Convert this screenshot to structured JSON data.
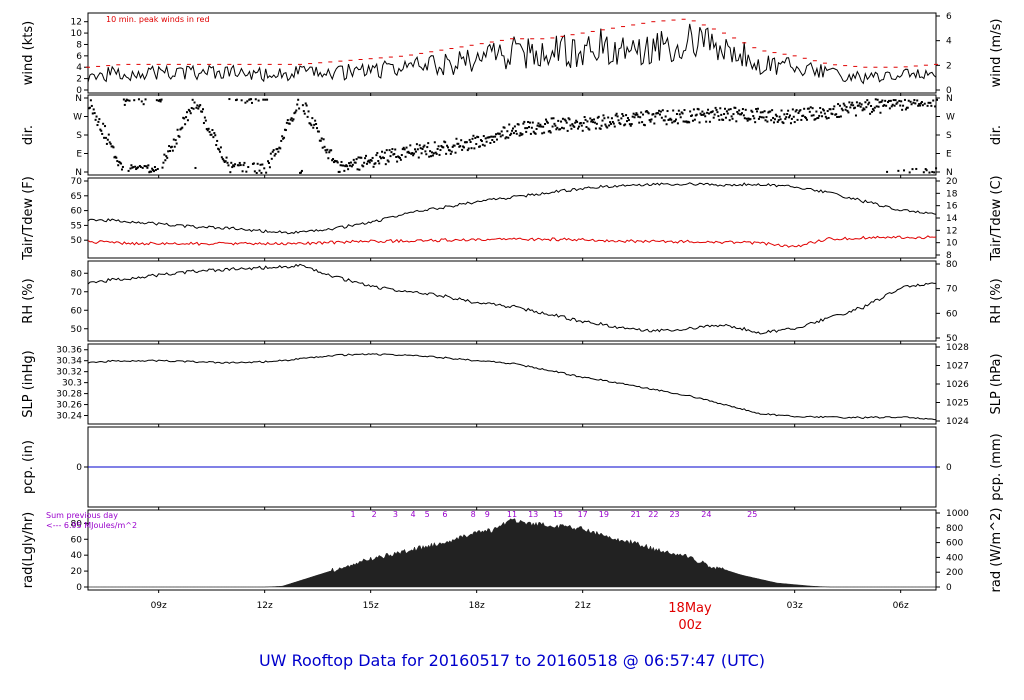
{
  "title": "UW Rooftop Data for 20160517  to  20160518 @ 06:57:47  (UTC)",
  "date_label": "18May",
  "date_label_sub": "00z",
  "wind_note": "10 min. peak winds in red",
  "rad_note_1": "Sum previous day",
  "rad_note_2": "<--- 6.95 MJoules/m^2",
  "colors": {
    "text": "#000000",
    "peak": "#e00000",
    "dew": "#e00000",
    "precip": "#0000cc",
    "title": "#0000cc",
    "note": "#9900cc"
  },
  "chart_data": [
    {
      "type": "line",
      "id": "wind",
      "ylabel": "wind (kts)",
      "ylabel_right": "wind (m/s)",
      "yticks": [
        0,
        2,
        4,
        6,
        8,
        10,
        12
      ],
      "yticks_right": [
        0,
        2,
        4,
        6
      ],
      "ylim": [
        0,
        13
      ],
      "series": [
        {
          "name": "wind",
          "color": "#000000",
          "points": [
            [
              7.0,
              2.5
            ],
            [
              8.0,
              3
            ],
            [
              9.0,
              3
            ],
            [
              10.0,
              3
            ],
            [
              11.0,
              3
            ],
            [
              12.0,
              2.7
            ],
            [
              13.0,
              3
            ],
            [
              14.0,
              3
            ],
            [
              15.0,
              3.5
            ],
            [
              16.0,
              4
            ],
            [
              17.0,
              4.5
            ],
            [
              18.0,
              5.5
            ],
            [
              19.0,
              6.5
            ],
            [
              20.0,
              6.5
            ],
            [
              21.0,
              7.0
            ],
            [
              22.0,
              8.0
            ],
            [
              23.0,
              8.0
            ],
            [
              24.0,
              8.5
            ],
            [
              25.0,
              7.0
            ],
            [
              26.0,
              5.0
            ],
            [
              27.0,
              4.0
            ],
            [
              28.0,
              3.0
            ],
            [
              29.0,
              2.0
            ],
            [
              30.0,
              2.5
            ],
            [
              31.0,
              3.0
            ]
          ]
        },
        {
          "name": "10 min. peak winds",
          "color": "#e00000",
          "points": [
            [
              7.0,
              4
            ],
            [
              8.0,
              4.5
            ],
            [
              9.0,
              4.5
            ],
            [
              10.0,
              4.5
            ],
            [
              11.0,
              4.5
            ],
            [
              12.0,
              4.5
            ],
            [
              13.0,
              4.5
            ],
            [
              14.0,
              5
            ],
            [
              15.0,
              5.5
            ],
            [
              16.0,
              6
            ],
            [
              17.0,
              7
            ],
            [
              18.0,
              8
            ],
            [
              19.0,
              9
            ],
            [
              20.0,
              9
            ],
            [
              21.0,
              10
            ],
            [
              22.0,
              11
            ],
            [
              23.0,
              12
            ],
            [
              24.0,
              12.5
            ],
            [
              25.0,
              10
            ],
            [
              26.0,
              7
            ],
            [
              27.0,
              6
            ],
            [
              28.0,
              4.5
            ],
            [
              29.0,
              4
            ],
            [
              30.0,
              4
            ],
            [
              31.0,
              4.5
            ]
          ]
        }
      ]
    },
    {
      "type": "scatter",
      "id": "dir",
      "ylabel": "dir.",
      "ylabel_right": "dir.",
      "yticks": [
        "N",
        "E",
        "S",
        "W",
        "N"
      ],
      "yticks_right": [
        "N",
        "E",
        "S",
        "W",
        "N"
      ],
      "ylim": [
        0,
        360
      ],
      "points": [
        [
          7.0,
          350
        ],
        [
          8.0,
          5
        ],
        [
          9.0,
          10
        ],
        [
          10.0,
          355
        ],
        [
          11.0,
          20
        ],
        [
          12.0,
          10
        ],
        [
          13.0,
          350
        ],
        [
          14.0,
          30
        ],
        [
          15.0,
          60
        ],
        [
          16.0,
          100
        ],
        [
          17.0,
          120
        ],
        [
          18.0,
          150
        ],
        [
          19.0,
          210
        ],
        [
          20.0,
          230
        ],
        [
          21.0,
          240
        ],
        [
          22.0,
          260
        ],
        [
          23.0,
          270
        ],
        [
          24.0,
          275
        ],
        [
          25.0,
          285
        ],
        [
          26.0,
          280
        ],
        [
          27.0,
          275
        ],
        [
          28.0,
          300
        ],
        [
          29.0,
          320
        ],
        [
          30.0,
          340
        ],
        [
          31.0,
          355
        ]
      ]
    },
    {
      "type": "line",
      "id": "temp",
      "ylabel": "Tair/Tdew (F)",
      "ylabel_right": "Tair/Tdew (C)",
      "yticks": [
        50,
        55,
        60,
        65,
        70
      ],
      "yticks_right": [
        8,
        10,
        12,
        14,
        16,
        18,
        20
      ],
      "ylim": [
        45,
        70
      ],
      "series": [
        {
          "name": "Tair",
          "color": "#000000",
          "points": [
            [
              7.0,
              57
            ],
            [
              8.0,
              56.5
            ],
            [
              9.0,
              55.5
            ],
            [
              10.0,
              54.5
            ],
            [
              11.0,
              54
            ],
            [
              12.0,
              53
            ],
            [
              13.0,
              52.5
            ],
            [
              14.0,
              54
            ],
            [
              15.0,
              56
            ],
            [
              16.0,
              59
            ],
            [
              17.0,
              61
            ],
            [
              18.0,
              63
            ],
            [
              19.0,
              64.5
            ],
            [
              20.0,
              66
            ],
            [
              21.0,
              67.5
            ],
            [
              22.0,
              68.5
            ],
            [
              23.0,
              69
            ],
            [
              24.0,
              69
            ],
            [
              25.0,
              68.5
            ],
            [
              26.0,
              69
            ],
            [
              27.0,
              68
            ],
            [
              28.0,
              66
            ],
            [
              29.0,
              63
            ],
            [
              30.0,
              60
            ],
            [
              31.0,
              59
            ]
          ]
        },
        {
          "name": "Tdew",
          "color": "#e00000",
          "points": [
            [
              7.0,
              49.5
            ],
            [
              8.0,
              49
            ],
            [
              9.0,
              48.8
            ],
            [
              10.0,
              48.8
            ],
            [
              11.0,
              48.8
            ],
            [
              12.0,
              48.8
            ],
            [
              13.0,
              48.8
            ],
            [
              14.0,
              49.3
            ],
            [
              15.0,
              49.7
            ],
            [
              16.0,
              49.7
            ],
            [
              17.0,
              50
            ],
            [
              18.0,
              50
            ],
            [
              19.0,
              50.3
            ],
            [
              20.0,
              50.3
            ],
            [
              21.0,
              50.2
            ],
            [
              22.0,
              49.8
            ],
            [
              23.0,
              49.5
            ],
            [
              24.0,
              49.5
            ],
            [
              25.0,
              49.3
            ],
            [
              26.0,
              49
            ],
            [
              27.0,
              47.8
            ],
            [
              28.0,
              50.5
            ],
            [
              29.0,
              50.8
            ],
            [
              30.0,
              51
            ],
            [
              31.0,
              51
            ]
          ]
        }
      ]
    },
    {
      "type": "line",
      "id": "rh",
      "ylabel": "RH (%)",
      "ylabel_right": "RH (%)",
      "yticks": [
        50,
        60,
        70,
        80
      ],
      "yticks_right": [
        50,
        60,
        70,
        80
      ],
      "ylim": [
        45,
        85
      ],
      "series": [
        {
          "name": "RH",
          "color": "#000000",
          "points": [
            [
              7.0,
              75
            ],
            [
              8.0,
              77
            ],
            [
              9.0,
              79
            ],
            [
              10.0,
              81
            ],
            [
              11.0,
              82
            ],
            [
              12.0,
              83
            ],
            [
              13.0,
              84
            ],
            [
              14.0,
              78
            ],
            [
              15.0,
              73
            ],
            [
              16.0,
              70
            ],
            [
              17.0,
              68
            ],
            [
              18.0,
              64
            ],
            [
              19.0,
              62
            ],
            [
              20.0,
              58
            ],
            [
              21.0,
              54
            ],
            [
              22.0,
              51
            ],
            [
              23.0,
              49
            ],
            [
              24.0,
              50
            ],
            [
              25.0,
              52
            ],
            [
              26.0,
              48
            ],
            [
              27.0,
              50
            ],
            [
              28.0,
              56
            ],
            [
              29.0,
              62
            ],
            [
              30.0,
              72
            ],
            [
              31.0,
              75
            ]
          ]
        }
      ]
    },
    {
      "type": "line",
      "id": "slp",
      "ylabel": "SLP (inHg)",
      "ylabel_right": "SLP (hPa)",
      "yticks": [
        30.24,
        30.26,
        30.28,
        30.3,
        30.32,
        30.34,
        30.36
      ],
      "yticks_right": [
        1024,
        1025,
        1026,
        1027,
        1028
      ],
      "ylim": [
        30.23,
        30.365
      ],
      "series": [
        {
          "name": "SLP",
          "color": "#000000",
          "points": [
            [
              7.0,
              30.337
            ],
            [
              8.0,
              30.34
            ],
            [
              9.0,
              30.34
            ],
            [
              10.0,
              30.338
            ],
            [
              11.0,
              30.336
            ],
            [
              12.0,
              30.338
            ],
            [
              13.0,
              30.343
            ],
            [
              14.0,
              30.35
            ],
            [
              15.0,
              30.352
            ],
            [
              16.0,
              30.35
            ],
            [
              17.0,
              30.346
            ],
            [
              18.0,
              30.34
            ],
            [
              19.0,
              30.335
            ],
            [
              20.0,
              30.323
            ],
            [
              21.0,
              30.31
            ],
            [
              22.0,
              30.3
            ],
            [
              23.0,
              30.288
            ],
            [
              24.0,
              30.276
            ],
            [
              25.0,
              30.26
            ],
            [
              26.0,
              30.244
            ],
            [
              27.0,
              30.238
            ],
            [
              28.0,
              30.237
            ],
            [
              29.0,
              30.236
            ],
            [
              30.0,
              30.237
            ],
            [
              31.0,
              30.233
            ]
          ]
        }
      ]
    },
    {
      "type": "line",
      "id": "pcp",
      "ylabel": "pcp. (in)",
      "ylabel_right": "pcp. (mm)",
      "yticks": [
        0
      ],
      "yticks_right": [
        0
      ],
      "ylim": [
        -1,
        1
      ],
      "series": [
        {
          "name": "pcp",
          "color": "#0000cc",
          "points": [
            [
              7.0,
              0
            ],
            [
              31.0,
              0
            ]
          ]
        }
      ]
    },
    {
      "type": "area",
      "id": "rad",
      "ylabel": "rad(Lgly/hr)",
      "ylabel_right": "rad (W/m^2)",
      "yticks": [
        0,
        20,
        40,
        60,
        80
      ],
      "yticks_right": [
        0,
        200,
        400,
        600,
        800,
        1000
      ],
      "ylim": [
        0,
        93
      ],
      "hour_labels": [
        {
          "label": "1",
          "x": 14.5
        },
        {
          "label": "2",
          "x": 15.1
        },
        {
          "label": "3",
          "x": 15.7
        },
        {
          "label": "4",
          "x": 16.2
        },
        {
          "label": "5",
          "x": 16.6
        },
        {
          "label": "6",
          "x": 17.1
        },
        {
          "label": "8",
          "x": 17.9
        },
        {
          "label": "9",
          "x": 18.3
        },
        {
          "label": "11",
          "x": 19.0
        },
        {
          "label": "13",
          "x": 19.6
        },
        {
          "label": "15",
          "x": 20.3
        },
        {
          "label": "17",
          "x": 21.0
        },
        {
          "label": "19",
          "x": 21.6
        },
        {
          "label": "21",
          "x": 22.5
        },
        {
          "label": "22",
          "x": 23.0
        },
        {
          "label": "23",
          "x": 23.6
        },
        {
          "label": "24",
          "x": 24.5
        },
        {
          "label": "25",
          "x": 25.8
        }
      ],
      "series": [
        {
          "name": "rad",
          "color": "#222222",
          "points": [
            [
              7.0,
              0
            ],
            [
              10.0,
              0
            ],
            [
              12.0,
              0
            ],
            [
              12.5,
              1
            ],
            [
              13.0,
              8
            ],
            [
              14.0,
              22
            ],
            [
              15.0,
              35
            ],
            [
              16.0,
              45
            ],
            [
              17.0,
              55
            ],
            [
              17.5,
              62
            ],
            [
              18.0,
              68
            ],
            [
              18.5,
              72
            ],
            [
              19.0,
              85
            ],
            [
              19.5,
              80
            ],
            [
              20.0,
              78
            ],
            [
              21.0,
              73
            ],
            [
              22.0,
              60
            ],
            [
              22.5,
              55
            ],
            [
              23.0,
              48
            ],
            [
              23.5,
              42
            ],
            [
              24.0,
              38
            ],
            [
              24.5,
              28
            ],
            [
              25.0,
              22
            ],
            [
              25.5,
              15
            ],
            [
              26.0,
              10
            ],
            [
              26.5,
              5
            ],
            [
              27.0,
              3
            ],
            [
              27.5,
              1
            ],
            [
              28.0,
              0
            ],
            [
              31.0,
              0
            ]
          ]
        }
      ]
    }
  ],
  "x_axis": {
    "ticks": [
      {
        "x": 9.0,
        "label": "09z"
      },
      {
        "x": 12.0,
        "label": "12z"
      },
      {
        "x": 15.0,
        "label": "15z"
      },
      {
        "x": 18.0,
        "label": "18z"
      },
      {
        "x": 21.0,
        "label": "21z"
      },
      {
        "x": 27.0,
        "label": "03z"
      },
      {
        "x": 30.0,
        "label": "06z"
      }
    ],
    "range": [
      7.0,
      31.0
    ]
  }
}
